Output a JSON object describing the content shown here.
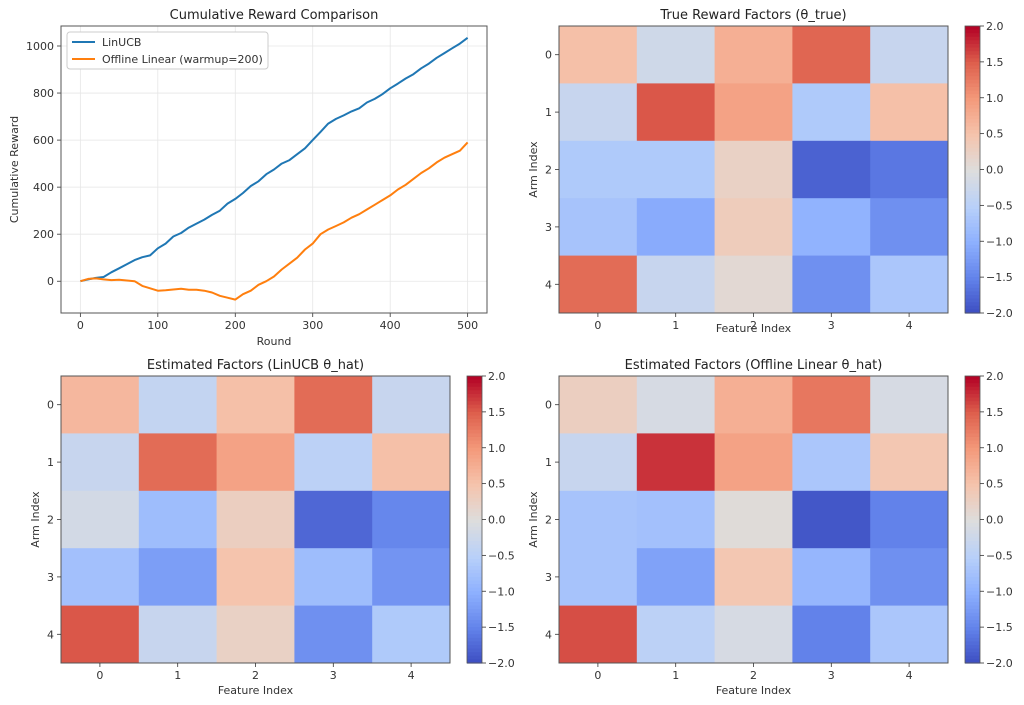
{
  "chart_data": [
    {
      "type": "line",
      "title": "Cumulative Reward Comparison",
      "xlabel": "Round",
      "ylabel": "Cumulative Reward",
      "xlim": [
        -25,
        525
      ],
      "ylim": [
        -135,
        1085
      ],
      "xticks": [
        0,
        100,
        200,
        300,
        400,
        500
      ],
      "yticks": [
        0,
        200,
        400,
        600,
        800,
        1000
      ],
      "grid": true,
      "legend_position": "top-left",
      "x": [
        0,
        10,
        20,
        30,
        40,
        50,
        60,
        70,
        80,
        90,
        100,
        110,
        120,
        130,
        140,
        150,
        160,
        170,
        180,
        190,
        200,
        210,
        220,
        230,
        240,
        250,
        260,
        270,
        280,
        290,
        300,
        310,
        320,
        330,
        340,
        350,
        360,
        370,
        380,
        390,
        400,
        410,
        420,
        430,
        440,
        450,
        460,
        470,
        480,
        490,
        500
      ],
      "series": [
        {
          "name": "LinUCB",
          "color": "#1f77b4",
          "values": [
            0,
            8,
            14,
            18,
            38,
            55,
            72,
            90,
            102,
            110,
            140,
            160,
            190,
            205,
            228,
            245,
            262,
            282,
            300,
            330,
            350,
            375,
            405,
            425,
            455,
            475,
            500,
            515,
            540,
            565,
            600,
            635,
            670,
            690,
            705,
            722,
            735,
            760,
            775,
            795,
            820,
            840,
            862,
            880,
            905,
            925,
            950,
            970,
            990,
            1010,
            1035
          ]
        },
        {
          "name": "Offline Linear (warmup=200)",
          "color": "#ff7f0e",
          "values": [
            0,
            10,
            12,
            8,
            5,
            6,
            3,
            0,
            -20,
            -30,
            -40,
            -38,
            -35,
            -32,
            -36,
            -36,
            -40,
            -48,
            -62,
            -70,
            -78,
            -55,
            -40,
            -15,
            0,
            20,
            50,
            75,
            100,
            135,
            160,
            200,
            220,
            235,
            250,
            270,
            285,
            305,
            325,
            345,
            365,
            390,
            410,
            435,
            460,
            480,
            505,
            525,
            540,
            555,
            590
          ]
        }
      ]
    },
    {
      "type": "heatmap",
      "title": "True Reward Factors (θ_true)",
      "xlabel": "Feature Index",
      "ylabel": "Arm Index",
      "xticks": [
        0,
        1,
        2,
        3,
        4
      ],
      "yticks": [
        0,
        1,
        2,
        3,
        4
      ],
      "colormap": "coolwarm",
      "vmin": -2.0,
      "vmax": 2.0,
      "colorbar_ticks": [
        2.0,
        1.5,
        1.0,
        0.5,
        0.0,
        -0.5,
        -1.0,
        -1.5,
        -2.0
      ],
      "values": [
        [
          0.55,
          -0.2,
          0.75,
          1.45,
          -0.3
        ],
        [
          -0.3,
          1.55,
          0.9,
          -0.6,
          0.55
        ],
        [
          -0.6,
          -0.6,
          0.25,
          -1.8,
          -1.6
        ],
        [
          -0.7,
          -1.05,
          0.35,
          -0.95,
          -1.35
        ],
        [
          1.4,
          -0.3,
          0.1,
          -1.35,
          -0.65
        ]
      ]
    },
    {
      "type": "heatmap",
      "title": "Estimated Factors (LinUCB θ_hat)",
      "xlabel": "Feature Index",
      "ylabel": "Arm Index",
      "xticks": [
        0,
        1,
        2,
        3,
        4
      ],
      "yticks": [
        0,
        1,
        2,
        3,
        4
      ],
      "colormap": "coolwarm",
      "vmin": -2.0,
      "vmax": 2.0,
      "colorbar_ticks": [
        2.0,
        1.5,
        1.0,
        0.5,
        0.0,
        -0.5,
        -1.0,
        -1.5,
        -2.0
      ],
      "values": [
        [
          0.65,
          -0.35,
          0.55,
          1.4,
          -0.3
        ],
        [
          -0.3,
          1.4,
          0.9,
          -0.45,
          0.55
        ],
        [
          -0.15,
          -0.8,
          0.3,
          -1.75,
          -1.45
        ],
        [
          -0.75,
          -1.2,
          0.5,
          -0.8,
          -1.3
        ],
        [
          1.55,
          -0.3,
          0.25,
          -1.35,
          -0.6
        ]
      ]
    },
    {
      "type": "heatmap",
      "title": "Estimated Factors (Offline Linear θ_hat)",
      "xlabel": "Feature Index",
      "ylabel": "Arm Index",
      "xticks": [
        0,
        1,
        2,
        3,
        4
      ],
      "yticks": [
        0,
        1,
        2,
        3,
        4
      ],
      "colormap": "coolwarm",
      "vmin": -2.0,
      "vmax": 2.0,
      "colorbar_ticks": [
        2.0,
        1.5,
        1.0,
        0.5,
        0.0,
        -0.5,
        -1.0,
        -1.5,
        -2.0
      ],
      "values": [
        [
          0.3,
          -0.1,
          0.75,
          1.3,
          -0.1
        ],
        [
          -0.3,
          1.75,
          0.9,
          -0.65,
          0.45
        ],
        [
          -0.7,
          -0.75,
          0.05,
          -1.9,
          -1.5
        ],
        [
          -0.7,
          -1.15,
          0.45,
          -0.9,
          -1.35
        ],
        [
          1.6,
          -0.45,
          -0.1,
          -1.5,
          -0.65
        ]
      ]
    }
  ]
}
